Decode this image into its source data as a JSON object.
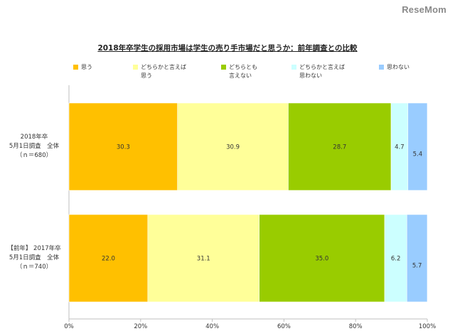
{
  "logo": "ReseMom",
  "chart_data": {
    "type": "bar",
    "orientation": "horizontal",
    "stacked": true,
    "title": "2018年卒学生の採用市場は学生の売り手市場だと思うか：前年調査との比較",
    "categories": [
      [
        "2018年卒",
        "5月1日調査　全体",
        "（ｎ＝680）"
      ],
      [
        "【前年】 2017年卒",
        "5月1日調査　全体",
        "（ｎ＝740）"
      ]
    ],
    "series": [
      {
        "name": [
          "思う"
        ],
        "color": "#FFC000",
        "values": [
          30.3,
          22.0
        ]
      },
      {
        "name": [
          "どちらかと言えば",
          "思う"
        ],
        "color": "#FFFF99",
        "values": [
          30.9,
          31.1
        ]
      },
      {
        "name": [
          "どちらとも",
          "言えない"
        ],
        "color": "#99CC00",
        "values": [
          28.7,
          35.0
        ]
      },
      {
        "name": [
          "どちらかと言えば",
          "思わない"
        ],
        "color": "#CCFFFF",
        "values": [
          4.7,
          6.2
        ]
      },
      {
        "name": [
          "思わない"
        ],
        "color": "#99CCFF",
        "values": [
          5.4,
          5.7
        ]
      }
    ],
    "xlim": [
      0,
      100
    ],
    "x_ticks": [
      "0%",
      "20%",
      "40%",
      "60%",
      "80%",
      "100%"
    ],
    "legend_position": "top",
    "grid": false
  }
}
